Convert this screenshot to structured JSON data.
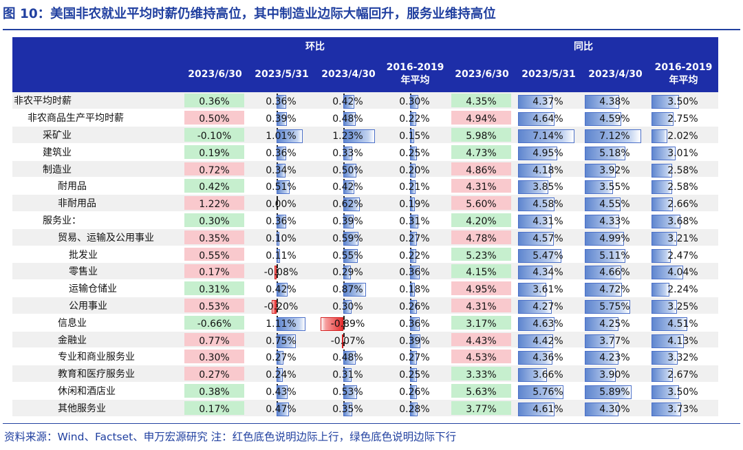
{
  "title": "图 10：美国非农就业平均时薪仍维持高位，其中制造业边际大幅回升，服务业维持高位",
  "footer": "资料来源：Wind、Factset、申万宏源研究 注：红色底色说明边际上行，绿色底色说明边际下行",
  "groups": {
    "mom": "环比",
    "yoy": "同比"
  },
  "columns": [
    "2023/6/30",
    "2023/5/31",
    "2023/4/30",
    "2016-2019 年平均",
    "2023/6/30",
    "2023/5/31",
    "2023/4/30",
    "2016-2019 年平均"
  ],
  "colors": {
    "header_bg": "#1d2ea8",
    "title": "#2140a0",
    "up_red": "#f9c9cd",
    "down_green": "#c6efce",
    "bar_blue": "#5f86cf",
    "bar_red": "#e83030"
  },
  "rows": [
    {
      "label": "非农平均时薪",
      "indent": 0,
      "mom": [
        "0.36%",
        "0.36%",
        "0.42%",
        "0.30%"
      ],
      "yoy": [
        "4.35%",
        "4.37%",
        "4.38%",
        "3.50%"
      ],
      "mom_flag": "green",
      "yoy_flag": "green"
    },
    {
      "label": "非农商品生产平均时薪",
      "indent": 1,
      "mom": [
        "0.50%",
        "0.39%",
        "0.48%",
        "0.22%"
      ],
      "yoy": [
        "4.94%",
        "4.64%",
        "4.59%",
        "2.75%"
      ],
      "mom_flag": "red",
      "yoy_flag": "red"
    },
    {
      "label": "采矿业",
      "indent": 2,
      "mom": [
        "-0.10%",
        "1.01%",
        "1.23%",
        "0.15%"
      ],
      "yoy": [
        "5.98%",
        "7.14%",
        "7.12%",
        "2.02%"
      ],
      "mom_flag": "green",
      "yoy_flag": "green"
    },
    {
      "label": "建筑业",
      "indent": 2,
      "mom": [
        "0.19%",
        "0.36%",
        "0.33%",
        "0.25%"
      ],
      "yoy": [
        "4.73%",
        "4.95%",
        "5.18%",
        "3.01%"
      ],
      "mom_flag": "green",
      "yoy_flag": "green"
    },
    {
      "label": "制造业",
      "indent": 2,
      "mom": [
        "0.72%",
        "0.34%",
        "0.50%",
        "0.20%"
      ],
      "yoy": [
        "4.86%",
        "4.18%",
        "3.92%",
        "2.58%"
      ],
      "mom_flag": "red",
      "yoy_flag": "red"
    },
    {
      "label": "耐用品",
      "indent": 3,
      "mom": [
        "0.42%",
        "0.51%",
        "0.42%",
        "0.21%"
      ],
      "yoy": [
        "4.31%",
        "3.85%",
        "3.55%",
        "2.58%"
      ],
      "mom_flag": "green",
      "yoy_flag": "red"
    },
    {
      "label": "非耐用品",
      "indent": 3,
      "mom": [
        "1.22%",
        "0.00%",
        "0.62%",
        "0.19%"
      ],
      "yoy": [
        "5.60%",
        "4.58%",
        "4.55%",
        "2.66%"
      ],
      "mom_flag": "red",
      "yoy_flag": "red"
    },
    {
      "label": "服务业：",
      "indent": 2,
      "mom": [
        "0.30%",
        "0.36%",
        "0.39%",
        "0.31%"
      ],
      "yoy": [
        "4.20%",
        "4.31%",
        "4.33%",
        "3.68%"
      ],
      "mom_flag": "green",
      "yoy_flag": "green"
    },
    {
      "label": "贸易、运输及公用事业",
      "indent": 3,
      "mom": [
        "0.35%",
        "0.10%",
        "0.59%",
        "0.27%"
      ],
      "yoy": [
        "4.78%",
        "4.57%",
        "4.99%",
        "3.21%"
      ],
      "mom_flag": "red",
      "yoy_flag": "red"
    },
    {
      "label": "批发业",
      "indent": 4,
      "mom": [
        "0.55%",
        "0.11%",
        "0.55%",
        "0.22%"
      ],
      "yoy": [
        "5.23%",
        "5.47%",
        "5.11%",
        "2.47%"
      ],
      "mom_flag": "red",
      "yoy_flag": "green"
    },
    {
      "label": "零售业",
      "indent": 4,
      "mom": [
        "0.17%",
        "-0.08%",
        "0.29%",
        "0.36%"
      ],
      "yoy": [
        "4.15%",
        "4.34%",
        "4.66%",
        "4.04%"
      ],
      "mom_flag": "red",
      "yoy_flag": "green"
    },
    {
      "label": "运输仓储业",
      "indent": 4,
      "mom": [
        "0.31%",
        "0.42%",
        "0.87%",
        "0.18%"
      ],
      "yoy": [
        "4.95%",
        "3.61%",
        "4.72%",
        "2.24%"
      ],
      "mom_flag": "green",
      "yoy_flag": "red"
    },
    {
      "label": "公用事业",
      "indent": 4,
      "mom": [
        "0.53%",
        "-0.20%",
        "0.30%",
        "0.26%"
      ],
      "yoy": [
        "4.31%",
        "4.27%",
        "5.75%",
        "3.25%"
      ],
      "mom_flag": "red",
      "yoy_flag": "red"
    },
    {
      "label": "信息业",
      "indent": 3,
      "mom": [
        "-0.66%",
        "1.11%",
        "-0.89%",
        "0.36%"
      ],
      "yoy": [
        "3.17%",
        "4.63%",
        "4.25%",
        "4.51%"
      ],
      "mom_flag": "green",
      "yoy_flag": "green"
    },
    {
      "label": "金融业",
      "indent": 3,
      "mom": [
        "0.77%",
        "0.75%",
        "-0.07%",
        "0.39%"
      ],
      "yoy": [
        "4.43%",
        "4.42%",
        "3.77%",
        "4.13%"
      ],
      "mom_flag": "red",
      "yoy_flag": "red"
    },
    {
      "label": "专业和商业服务业",
      "indent": 3,
      "mom": [
        "0.30%",
        "0.27%",
        "0.48%",
        "0.27%"
      ],
      "yoy": [
        "4.53%",
        "4.36%",
        "4.23%",
        "3.32%"
      ],
      "mom_flag": "red",
      "yoy_flag": "red"
    },
    {
      "label": "教育和医疗服务业",
      "indent": 3,
      "mom": [
        "0.27%",
        "0.24%",
        "0.31%",
        "0.25%"
      ],
      "yoy": [
        "3.33%",
        "3.66%",
        "3.90%",
        "2.67%"
      ],
      "mom_flag": "red",
      "yoy_flag": "green"
    },
    {
      "label": "休闲和酒店业",
      "indent": 3,
      "mom": [
        "0.38%",
        "0.43%",
        "0.53%",
        "0.26%"
      ],
      "yoy": [
        "5.63%",
        "5.76%",
        "5.89%",
        "3.50%"
      ],
      "mom_flag": "green",
      "yoy_flag": "green"
    },
    {
      "label": "其他服务业",
      "indent": 3,
      "mom": [
        "0.17%",
        "0.47%",
        "0.35%",
        "0.28%"
      ],
      "yoy": [
        "3.77%",
        "4.61%",
        "4.30%",
        "3.73%"
      ],
      "mom_flag": "green",
      "yoy_flag": "green"
    }
  ]
}
